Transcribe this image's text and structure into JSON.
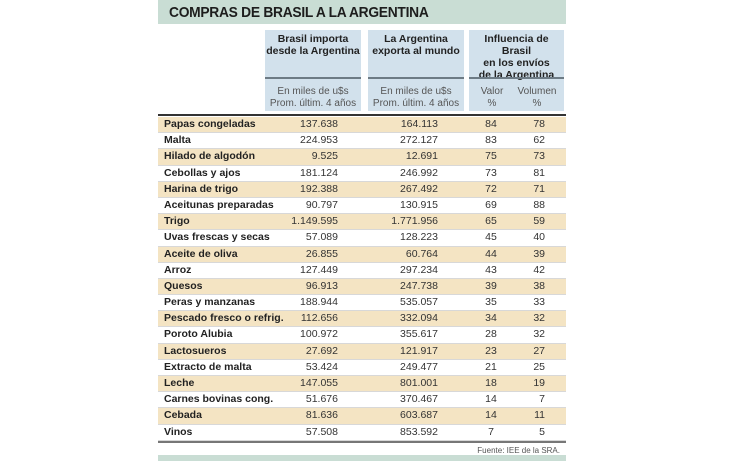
{
  "title": "COMPRAS DE BRASIL A LA ARGENTINA",
  "headers": {
    "col1": {
      "title": [
        "Brasil importa",
        "desde la Argentina"
      ],
      "sub": [
        "En miles de u$s",
        "Prom. últim. 4 años"
      ]
    },
    "col2": {
      "title": [
        "La Argentina",
        "exporta al mundo"
      ],
      "sub": [
        "En miles de u$s",
        "Prom. últim. 4 años"
      ]
    },
    "col3": {
      "title": [
        "Influencia de Brasil",
        "en los envíos",
        "de la Argentina"
      ],
      "valor": [
        "Valor",
        "%"
      ],
      "volumen": [
        "Volumen",
        "%"
      ]
    }
  },
  "rows": [
    [
      "Papas congeladas",
      "137.638",
      "164.113",
      "84",
      "78"
    ],
    [
      "Malta",
      "224.953",
      "272.127",
      "83",
      "62"
    ],
    [
      "Hilado de algodón",
      "9.525",
      "12.691",
      "75",
      "73"
    ],
    [
      "Cebollas y ajos",
      "181.124",
      "246.992",
      "73",
      "81"
    ],
    [
      "Harina de trigo",
      "192.388",
      "267.492",
      "72",
      "71"
    ],
    [
      "Aceitunas preparadas",
      "90.797",
      "130.915",
      "69",
      "88"
    ],
    [
      "Trigo",
      "1.149.595",
      "1.771.956",
      "65",
      "59"
    ],
    [
      "Uvas frescas y secas",
      "57.089",
      "128.223",
      "45",
      "40"
    ],
    [
      "Aceite de oliva",
      "26.855",
      "60.764",
      "44",
      "39"
    ],
    [
      "Arroz",
      "127.449",
      "297.234",
      "43",
      "42"
    ],
    [
      "Quesos",
      "96.913",
      "247.738",
      "39",
      "38"
    ],
    [
      "Peras y manzanas",
      "188.944",
      "535.057",
      "35",
      "33"
    ],
    [
      "Pescado fresco o refrig.",
      "112.656",
      "332.094",
      "34",
      "32"
    ],
    [
      "Poroto Alubia",
      "100.972",
      "355.617",
      "28",
      "32"
    ],
    [
      "Lactosueros",
      "27.692",
      "121.917",
      "23",
      "27"
    ],
    [
      "Extracto de malta",
      "53.424",
      "249.477",
      "21",
      "25"
    ],
    [
      "Leche",
      "147.055",
      "801.001",
      "18",
      "19"
    ],
    [
      "Carnes bovinas cong.",
      "51.676",
      "370.467",
      "14",
      "7"
    ],
    [
      "Cebada",
      "81.636",
      "603.687",
      "14",
      "11"
    ],
    [
      "Vinos",
      "57.508",
      "853.592",
      "7",
      "5"
    ]
  ],
  "source": "Fuente: IEE de la SRA.",
  "colors": {
    "title_bg": "#c9ddd4",
    "header_bg": "#d2e1ec",
    "row_alt": "#f4e4c3"
  }
}
